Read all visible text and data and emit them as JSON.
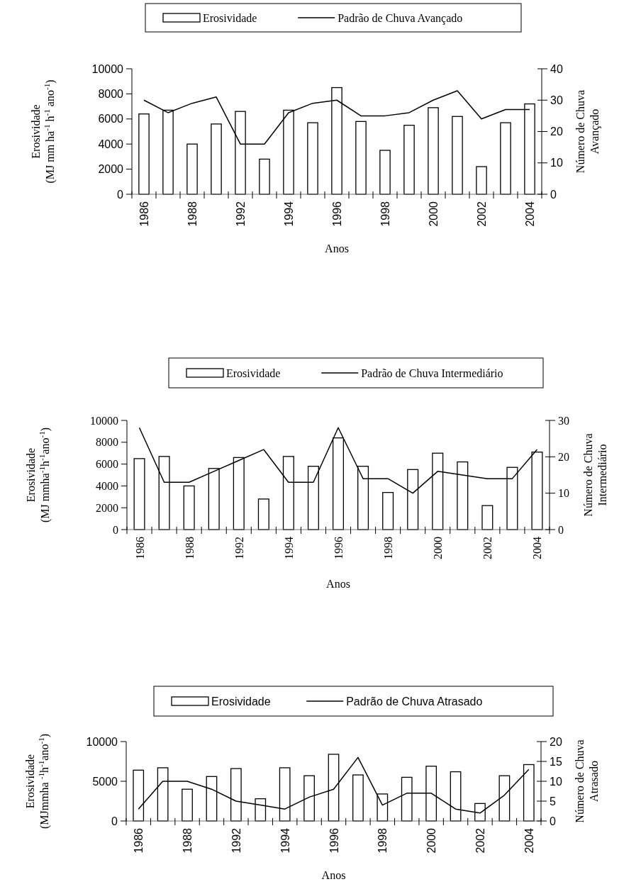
{
  "chart_data": [
    {
      "type": "bar",
      "xlabel": "Anos",
      "ylabel": "Erosividade\n(MJ mm ha$^{-1}$  h$^{-1}$ ano$^{-1}$)",
      "y2label": "Número de Chuva\nAvançado",
      "legend": "top",
      "grid": false,
      "categories": [
        "1986",
        null,
        "1988",
        null,
        "1992",
        null,
        "1994",
        null,
        "1996",
        null,
        "1998",
        null,
        "2000",
        null,
        "2002",
        null,
        "2004"
      ],
      "ylim": [
        0,
        10000
      ],
      "yticks": [
        0,
        2000,
        4000,
        6000,
        8000,
        10000
      ],
      "y2lim": [
        0,
        40
      ],
      "y2ticks": [
        0,
        10,
        20,
        30,
        40
      ],
      "series": [
        {
          "name": "Erosividade",
          "color": "#ffffff",
          "values": [
            6400,
            6700,
            4000,
            5600,
            6600,
            2800,
            6700,
            5700,
            8500,
            5800,
            3500,
            5500,
            6900,
            6200,
            2200,
            5700,
            7200
          ]
        },
        {
          "name": "Padrão de Chuva Avançado",
          "type": "line",
          "axis": "y2",
          "color": "#000000",
          "values": [
            30,
            26,
            29,
            31,
            16,
            16,
            26,
            29,
            30,
            25,
            25,
            26,
            30,
            33,
            24,
            27,
            27
          ]
        }
      ]
    },
    {
      "type": "bar",
      "xlabel": "Anos",
      "ylabel": "Erosividade\n(MJ mmha$^{-1}$h$^{-1}$ano$^{-1}$)",
      "y2label": "Número de Chuva\nIntermediário",
      "legend": "top",
      "grid": false,
      "categories": [
        "1986",
        null,
        "1988",
        null,
        "1992",
        null,
        "1994",
        null,
        "1996",
        null,
        "1998",
        null,
        "2000",
        null,
        "2002",
        null,
        "2004"
      ],
      "ylim": [
        0,
        10000
      ],
      "yticks": [
        0,
        2000,
        4000,
        6000,
        8000,
        10000
      ],
      "y2lim": [
        0,
        30
      ],
      "y2ticks": [
        0,
        10,
        20,
        30
      ],
      "series": [
        {
          "name": "Erosividade",
          "color": "#ffffff",
          "values": [
            6500,
            6700,
            4000,
            5600,
            6600,
            2800,
            6700,
            5800,
            8400,
            5800,
            3400,
            5500,
            7000,
            6200,
            2200,
            5700,
            7100
          ]
        },
        {
          "name": "Padrão de Chuva Intermediário",
          "type": "line",
          "axis": "y2",
          "color": "#000000",
          "values": [
            28,
            13,
            13,
            16,
            19,
            22,
            13,
            13,
            28,
            14,
            14,
            10,
            16,
            15,
            14,
            14,
            22
          ]
        }
      ]
    },
    {
      "type": "bar",
      "xlabel": "Anos",
      "ylabel": "Erosividade\n(MJmmha $^{-1}$h$^{-1}$ano$^{-1}$)",
      "y2label": "Número de Chuva\nAtrasado",
      "legend": "top",
      "grid": false,
      "categories": [
        "1986",
        null,
        "1988",
        null,
        "1992",
        null,
        "1994",
        null,
        "1996",
        null,
        "1998",
        null,
        "2000",
        null,
        "2002",
        null,
        "2004"
      ],
      "ylim": [
        0,
        10000
      ],
      "yticks": [
        0,
        5000,
        10000
      ],
      "y2lim": [
        0,
        20
      ],
      "y2ticks": [
        0,
        5,
        10,
        15,
        20
      ],
      "series": [
        {
          "name": "Erosividade",
          "color": "#ffffff",
          "values": [
            6400,
            6700,
            4000,
            5600,
            6600,
            2800,
            6700,
            5700,
            8400,
            5800,
            3400,
            5500,
            6900,
            6200,
            2200,
            5700,
            7100
          ]
        },
        {
          "name": "Padrão de Chuva Atrasado",
          "type": "line",
          "axis": "y2",
          "color": "#000000",
          "values": [
            3,
            10,
            10,
            8,
            5,
            4,
            3,
            6,
            8,
            16,
            4,
            7,
            7,
            3,
            2,
            6.5,
            13
          ]
        }
      ]
    }
  ]
}
